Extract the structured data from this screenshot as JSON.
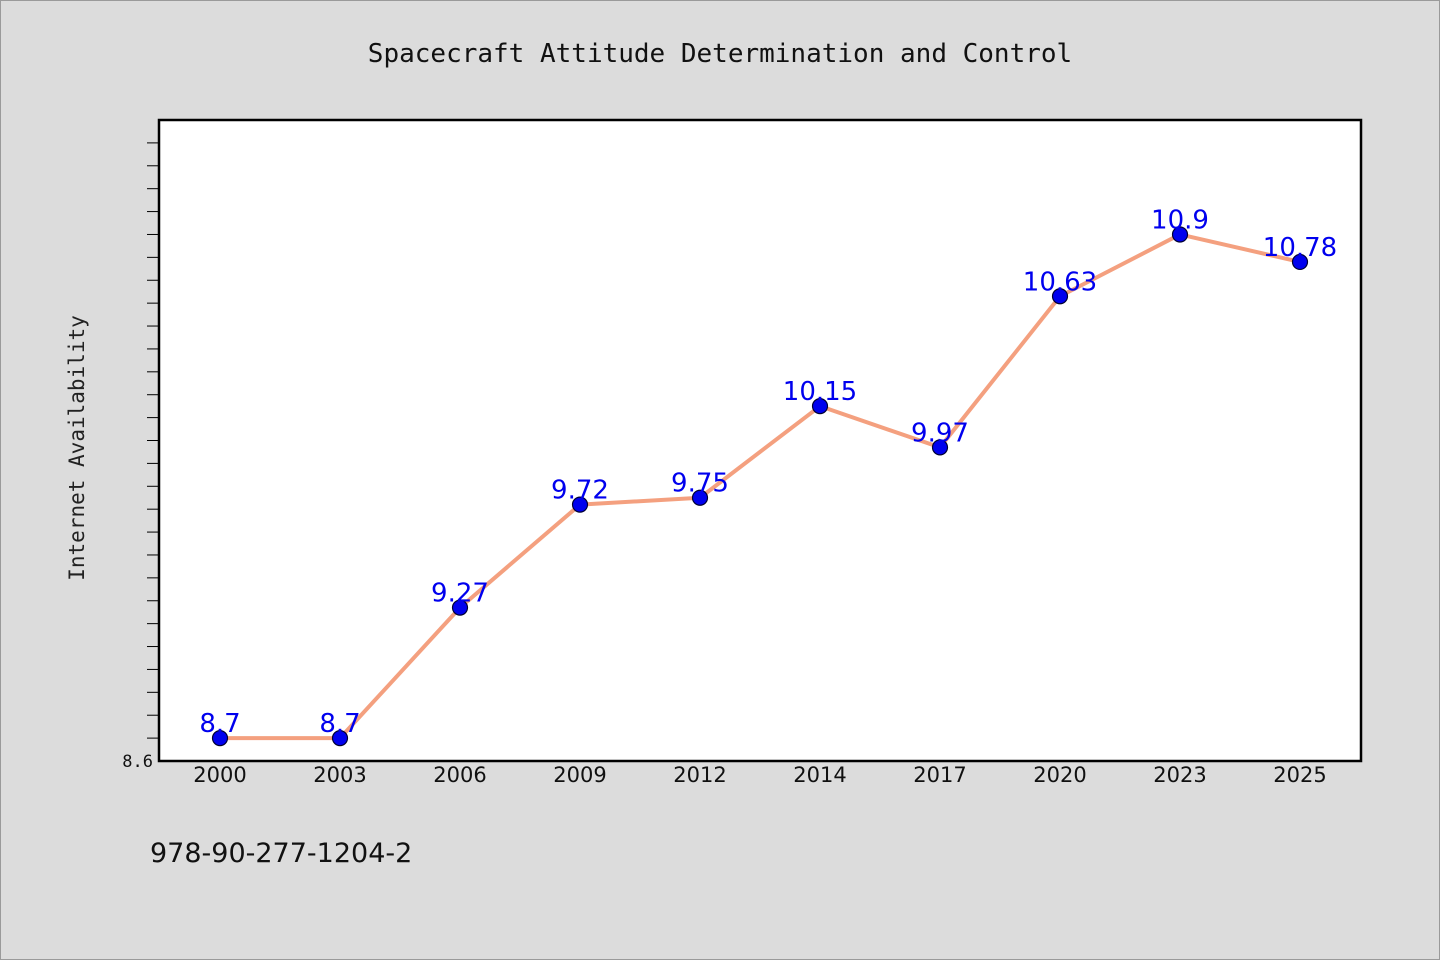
{
  "colors": {
    "background": "#dcdcdc",
    "plot_bg": "#ffffff",
    "line": "#f4a07f",
    "marker": "#0000ee",
    "data_label": "#0000ee"
  },
  "footer": {
    "isbn": "978-90-277-1204-2"
  },
  "chart_data": {
    "type": "line",
    "title": "Spacecraft Attitude Determination and Control",
    "xlabel": "",
    "ylabel": "Internet Availability",
    "categories": [
      "2000",
      "2003",
      "2006",
      "2009",
      "2012",
      "2014",
      "2017",
      "2020",
      "2023",
      "2025"
    ],
    "series": [
      {
        "values": [
          8.7,
          8.7,
          9.27,
          9.72,
          9.75,
          10.15,
          9.97,
          10.63,
          10.9,
          10.78
        ]
      }
    ],
    "data_labels": [
      "8.7",
      "8.7",
      "9.27",
      "9.72",
      "9.75",
      "10.15",
      "9.97",
      "10.63",
      "10.9",
      "10.78"
    ],
    "ylim": [
      8.6,
      11.4
    ],
    "y_tick_labels": [
      "8.6"
    ],
    "y_minor_step": 0.1,
    "grid": false,
    "legend": "none"
  }
}
